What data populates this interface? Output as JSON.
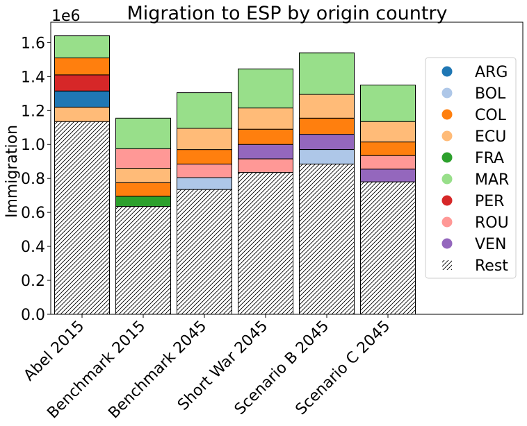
{
  "chart_data": {
    "type": "bar",
    "stacked": true,
    "title": "Migration to ESP by origin country",
    "ylabel": "Immigration",
    "xlabel": "",
    "y_multiplier_label": "1e6",
    "ylim": [
      0,
      1.72
    ],
    "yticks": [
      "0.0",
      "0.2",
      "0.4",
      "0.6",
      "0.8",
      "1.0",
      "1.2",
      "1.4",
      "1.6"
    ],
    "categories": [
      "Abel 2015",
      "Benchmark 2015",
      "Benchmark 2045",
      "Short War 2045",
      "Scenario B 2045",
      "Scenario C 2045"
    ],
    "colors": {
      "ARG": "#1f77b4",
      "BOL": "#aec7e8",
      "COL": "#ff7f0e",
      "ECU": "#ffbb78",
      "FRA": "#2ca02c",
      "MAR": "#98df8a",
      "PER": "#d62728",
      "ROU": "#ff9896",
      "VEN": "#9467bd",
      "Rest": "#ffffff"
    },
    "legend": {
      "placement": "center-right",
      "entries": [
        "ARG",
        "BOL",
        "COL",
        "ECU",
        "FRA",
        "MAR",
        "PER",
        "ROU",
        "VEN",
        "Rest"
      ]
    },
    "stacks": [
      [
        {
          "name": "Rest",
          "value": 1.135
        },
        {
          "name": "ECU",
          "value": 0.085
        },
        {
          "name": "ARG",
          "value": 0.095
        },
        {
          "name": "PER",
          "value": 0.095
        },
        {
          "name": "COL",
          "value": 0.1
        },
        {
          "name": "MAR",
          "value": 0.13
        }
      ],
      [
        {
          "name": "Rest",
          "value": 0.635
        },
        {
          "name": "FRA",
          "value": 0.06
        },
        {
          "name": "COL",
          "value": 0.08
        },
        {
          "name": "ECU",
          "value": 0.085
        },
        {
          "name": "ROU",
          "value": 0.115
        },
        {
          "name": "MAR",
          "value": 0.18
        }
      ],
      [
        {
          "name": "Rest",
          "value": 0.735
        },
        {
          "name": "BOL",
          "value": 0.07
        },
        {
          "name": "ROU",
          "value": 0.08
        },
        {
          "name": "COL",
          "value": 0.085
        },
        {
          "name": "ECU",
          "value": 0.125
        },
        {
          "name": "MAR",
          "value": 0.21
        }
      ],
      [
        {
          "name": "Rest",
          "value": 0.835
        },
        {
          "name": "ROU",
          "value": 0.08
        },
        {
          "name": "VEN",
          "value": 0.085
        },
        {
          "name": "COL",
          "value": 0.09
        },
        {
          "name": "ECU",
          "value": 0.125
        },
        {
          "name": "MAR",
          "value": 0.23
        }
      ],
      [
        {
          "name": "Rest",
          "value": 0.885
        },
        {
          "name": "BOL",
          "value": 0.085
        },
        {
          "name": "VEN",
          "value": 0.09
        },
        {
          "name": "COL",
          "value": 0.095
        },
        {
          "name": "ECU",
          "value": 0.14
        },
        {
          "name": "MAR",
          "value": 0.245
        }
      ],
      [
        {
          "name": "Rest",
          "value": 0.78
        },
        {
          "name": "VEN",
          "value": 0.075
        },
        {
          "name": "ROU",
          "value": 0.08
        },
        {
          "name": "COL",
          "value": 0.08
        },
        {
          "name": "ECU",
          "value": 0.12
        },
        {
          "name": "MAR",
          "value": 0.215
        }
      ]
    ]
  }
}
